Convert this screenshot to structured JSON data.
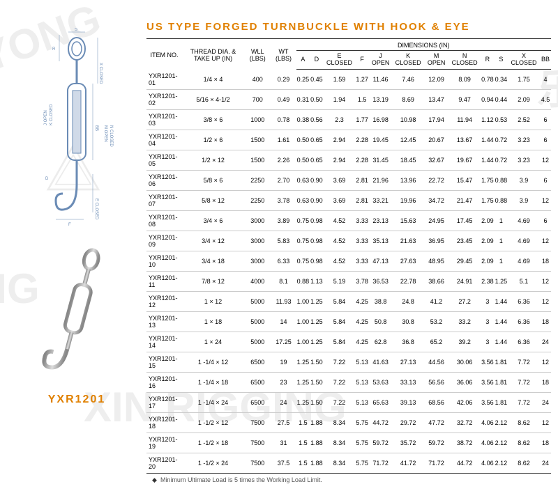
{
  "title": "US TYPE FORGED TURNBUCKLE WITH HOOK & EYE",
  "product_code": "YXR1201",
  "footnote": "Minimum Ultimate Load is 5 times the Working Load Limit.",
  "headers": {
    "item_no": "ITEM NO.",
    "thread": "THREAD DIA. & TAKE UP (IN)",
    "wll": "WLL (LBS)",
    "wt": "WT (LBS)",
    "dimensions": "DIMENSIONS (IN)",
    "cols": [
      "A",
      "D",
      "E CLOSED",
      "F",
      "J OPEN",
      "K CLOSED",
      "M OPEN",
      "N CLOSED",
      "R",
      "S",
      "X CLOSED",
      "BB"
    ]
  },
  "rows": [
    [
      "YXR1201-01",
      "1/4 × 4",
      "400",
      "0.29",
      "0.25",
      "0.45",
      "1.59",
      "1.27",
      "11.46",
      "7.46",
      "12.09",
      "8.09",
      "0.78",
      "0.34",
      "1.75",
      "4"
    ],
    [
      "YXR1201-02",
      "5/16 × 4-1/2",
      "700",
      "0.49",
      "0.31",
      "0.50",
      "1.94",
      "1.5",
      "13.19",
      "8.69",
      "13.47",
      "9.47",
      "0.94",
      "0.44",
      "2.09",
      "4.5"
    ],
    [
      "YXR1201-03",
      "3/8 × 6",
      "1000",
      "0.78",
      "0.38",
      "0.56",
      "2.3",
      "1.77",
      "16.98",
      "10.98",
      "17.94",
      "11.94",
      "1.12",
      "0.53",
      "2.52",
      "6"
    ],
    [
      "YXR1201-04",
      "1/2 × 6",
      "1500",
      "1.61",
      "0.50",
      "0.65",
      "2.94",
      "2.28",
      "19.45",
      "12.45",
      "20.67",
      "13.67",
      "1.44",
      "0.72",
      "3.23",
      "6"
    ],
    [
      "YXR1201-05",
      "1/2 × 12",
      "1500",
      "2.26",
      "0.50",
      "0.65",
      "2.94",
      "2.28",
      "31.45",
      "18.45",
      "32.67",
      "19.67",
      "1.44",
      "0.72",
      "3.23",
      "12"
    ],
    [
      "YXR1201-06",
      "5/8 × 6",
      "2250",
      "2.70",
      "0.63",
      "0.90",
      "3.69",
      "2.81",
      "21.96",
      "13.96",
      "22.72",
      "15.47",
      "1.75",
      "0.88",
      "3.9",
      "6"
    ],
    [
      "YXR1201-07",
      "5/8 × 12",
      "2250",
      "3.78",
      "0.63",
      "0.90",
      "3.69",
      "2.81",
      "33.21",
      "19.96",
      "34.72",
      "21.47",
      "1.75",
      "0.88",
      "3.9",
      "12"
    ],
    [
      "YXR1201-08",
      "3/4 × 6",
      "3000",
      "3.89",
      "0.75",
      "0.98",
      "4.52",
      "3.33",
      "23.13",
      "15.63",
      "24.95",
      "17.45",
      "2.09",
      "1",
      "4.69",
      "6"
    ],
    [
      "YXR1201-09",
      "3/4 × 12",
      "3000",
      "5.83",
      "0.75",
      "0.98",
      "4.52",
      "3.33",
      "35.13",
      "21.63",
      "36.95",
      "23.45",
      "2.09",
      "1",
      "4.69",
      "12"
    ],
    [
      "YXR1201-10",
      "3/4 × 18",
      "3000",
      "6.33",
      "0.75",
      "0.98",
      "4.52",
      "3.33",
      "47.13",
      "27.63",
      "48.95",
      "29.45",
      "2.09",
      "1",
      "4.69",
      "18"
    ],
    [
      "YXR1201-11",
      "7/8 × 12",
      "4000",
      "8.1",
      "0.88",
      "1.13",
      "5.19",
      "3.78",
      "36.53",
      "22.78",
      "38.66",
      "24.91",
      "2.38",
      "1.25",
      "5.1",
      "12"
    ],
    [
      "YXR1201-12",
      "1 × 12",
      "5000",
      "11.93",
      "1.00",
      "1.25",
      "5.84",
      "4.25",
      "38.8",
      "24.8",
      "41.2",
      "27.2",
      "3",
      "1.44",
      "6.36",
      "12"
    ],
    [
      "YXR1201-13",
      "1 × 18",
      "5000",
      "14",
      "1.00",
      "1.25",
      "5.84",
      "4.25",
      "50.8",
      "30.8",
      "53.2",
      "33.2",
      "3",
      "1.44",
      "6.36",
      "18"
    ],
    [
      "YXR1201-14",
      "1 × 24",
      "5000",
      "17.25",
      "1.00",
      "1.25",
      "5.84",
      "4.25",
      "62.8",
      "36.8",
      "65.2",
      "39.2",
      "3",
      "1.44",
      "6.36",
      "24"
    ],
    [
      "YXR1201-15",
      "1 -1/4 × 12",
      "6500",
      "19",
      "1.25",
      "1.50",
      "7.22",
      "5.13",
      "41.63",
      "27.13",
      "44.56",
      "30.06",
      "3.56",
      "1.81",
      "7.72",
      "12"
    ],
    [
      "YXR1201-16",
      "1 -1/4 × 18",
      "6500",
      "23",
      "1.25",
      "1.50",
      "7.22",
      "5.13",
      "53.63",
      "33.13",
      "56.56",
      "36.06",
      "3.56",
      "1.81",
      "7.72",
      "18"
    ],
    [
      "YXR1201-17",
      "1 -1/4 × 24",
      "6500",
      "24",
      "1.25",
      "1.50",
      "7.22",
      "5.13",
      "65.63",
      "39.13",
      "68.56",
      "42.06",
      "3.56",
      "1.81",
      "7.72",
      "24"
    ],
    [
      "YXR1201-18",
      "1 -1/2 × 12",
      "7500",
      "27.5",
      "1.5",
      "1.88",
      "8.34",
      "5.75",
      "44.72",
      "29.72",
      "47.72",
      "32.72",
      "4.06",
      "2.12",
      "8.62",
      "12"
    ],
    [
      "YXR1201-19",
      "1 -1/2 × 18",
      "7500",
      "31",
      "1.5",
      "1.88",
      "8.34",
      "5.75",
      "59.72",
      "35.72",
      "59.72",
      "38.72",
      "4.06",
      "2.12",
      "8.62",
      "18"
    ],
    [
      "YXR1201-20",
      "1 -1/2 × 24",
      "7500",
      "37.5",
      "1.5",
      "1.88",
      "8.34",
      "5.75",
      "71.72",
      "41.72",
      "71.72",
      "44.72",
      "4.06",
      "2.12",
      "8.62",
      "24"
    ]
  ]
}
